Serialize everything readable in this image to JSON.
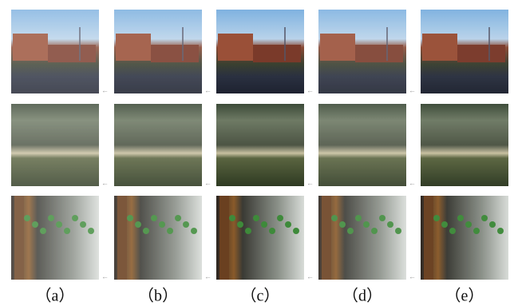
{
  "figure": {
    "labels": [
      "（a）",
      "（b）",
      "（c）",
      "（d）",
      "（e）"
    ]
  }
}
